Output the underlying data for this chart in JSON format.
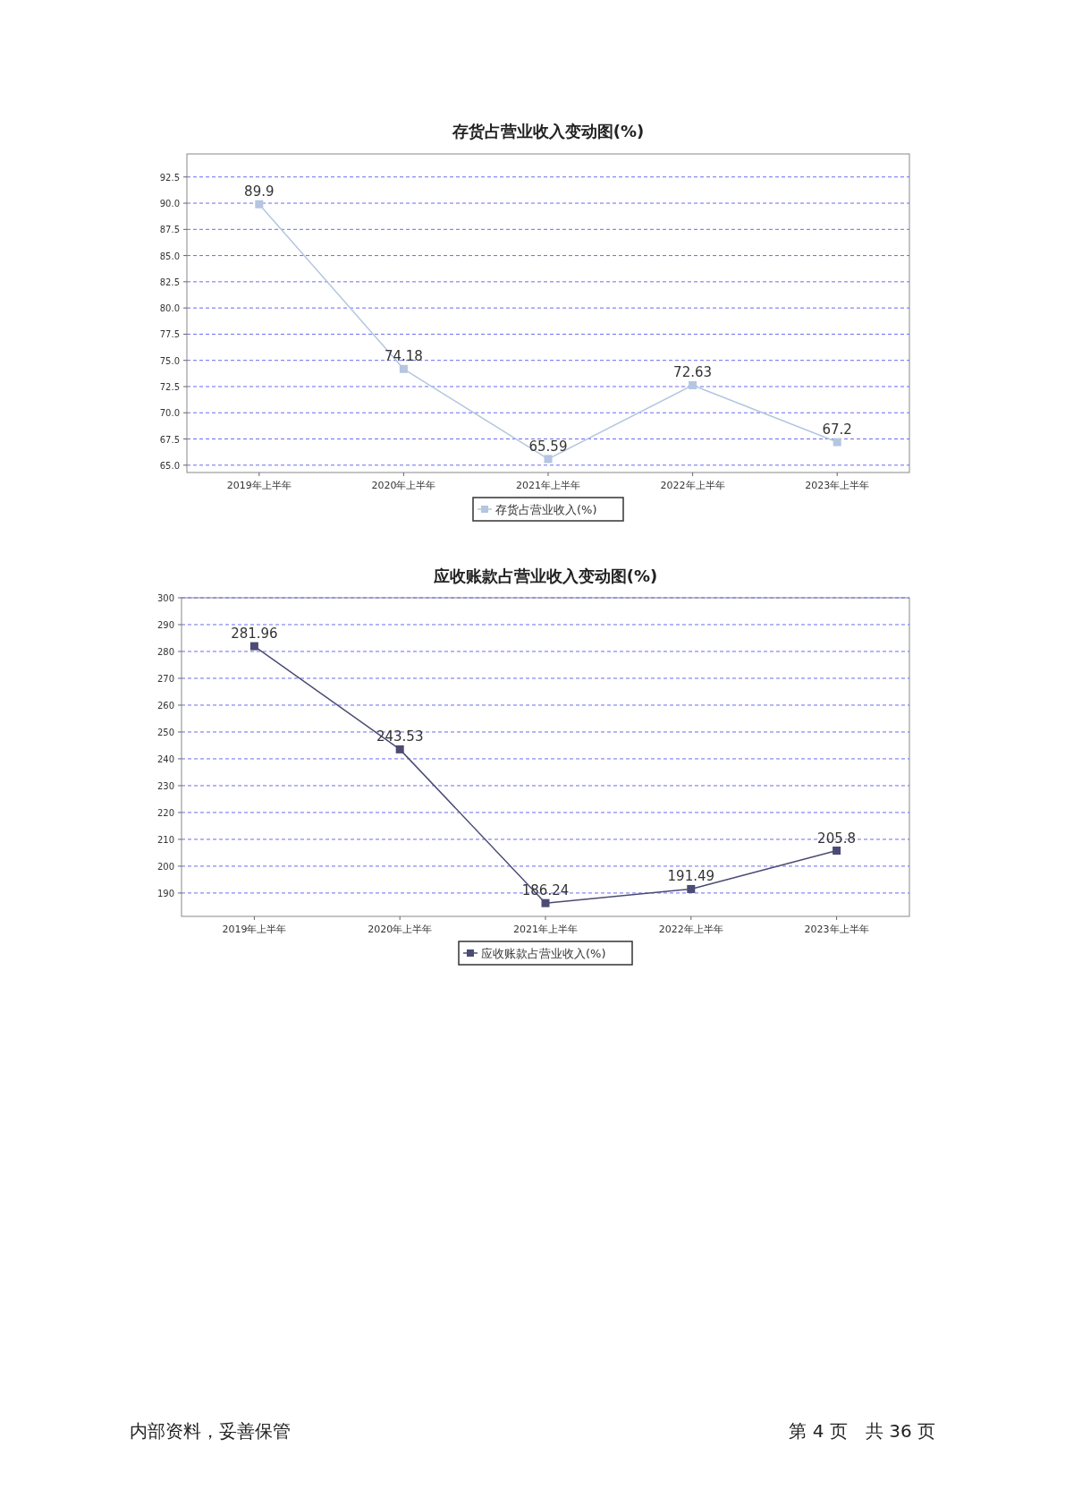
{
  "chart_data": [
    {
      "type": "line",
      "title": "存货占营业收入变动图(%)",
      "categories": [
        "2019年上半年",
        "2020年上半年",
        "2021年上半年",
        "2022年上半年",
        "2023年上半年"
      ],
      "series": [
        {
          "name": "存货占营业收入(%)",
          "color": "#b4c6e0",
          "values": [
            89.9,
            74.18,
            65.59,
            72.63,
            67.2
          ]
        }
      ],
      "ylim": [
        64.3,
        94.7
      ],
      "yticks": [
        {
          "value": 65,
          "label": "65.0"
        },
        {
          "value": 67.5,
          "label": "67.5"
        },
        {
          "value": 70,
          "label": "70.0"
        },
        {
          "value": 72.5,
          "label": "72.5"
        },
        {
          "value": 75,
          "label": "75.0"
        },
        {
          "value": 77.5,
          "label": "77.5"
        },
        {
          "value": 80,
          "label": "80.0"
        },
        {
          "value": 82.5,
          "label": "82.5"
        },
        {
          "value": 85,
          "label": "85.0"
        },
        {
          "value": 87.5,
          "label": "87.5"
        },
        {
          "value": 90,
          "label": "90.0"
        },
        {
          "value": 92.5,
          "label": "92.5"
        }
      ],
      "grid": "y",
      "legend": "bottom",
      "marker": "square",
      "line_style": "solid",
      "data_labels": true
    },
    {
      "type": "line",
      "title": "应收账款占营业收入变动图(%)",
      "categories": [
        "2019年上半年",
        "2020年上半年",
        "2021年上半年",
        "2022年上半年",
        "2023年上半年"
      ],
      "series": [
        {
          "name": "应收账款占营业收入(%)",
          "color": "#4b4b74",
          "values": [
            281.96,
            243.53,
            186.24,
            191.49,
            205.8
          ]
        }
      ],
      "ylim": [
        181.3,
        300
      ],
      "yticks": [
        190,
        200,
        210,
        220,
        230,
        240,
        250,
        260,
        270,
        280,
        290,
        300
      ],
      "grid": "y",
      "legend": "bottom",
      "marker": "square",
      "line_style": "solid",
      "data_labels": true,
      "annotations": [
        "内部资料，妥善保管",
        "第 4 页　共 36 页"
      ]
    }
  ]
}
